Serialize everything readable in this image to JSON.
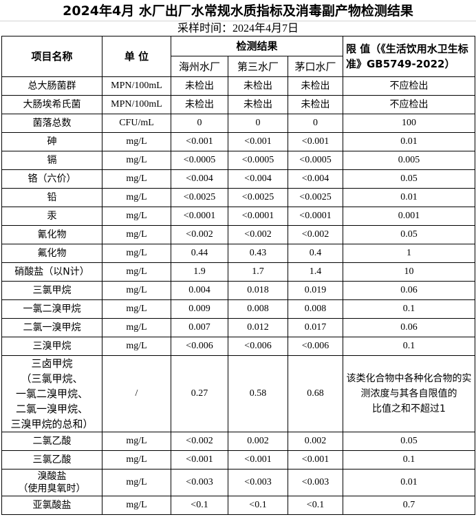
{
  "title": "2024年4月  水厂出厂水常规水质指标及消毒副产物检测结果",
  "subtitle": "采样时间：2024年4月7日",
  "header": {
    "item": "项目名称",
    "unit": "单 位",
    "results": "检测结果",
    "plants": [
      "海州水厂",
      "第三水厂",
      "茅口水厂"
    ],
    "limit": "限 值（《生活饮用水卫生标准》GB5749-2022）"
  },
  "rows": [
    {
      "name": "总大肠菌群",
      "unit": "MPN/100mL",
      "v": [
        "未检出",
        "未检出",
        "未检出"
      ],
      "limit": "不应检出"
    },
    {
      "name": "大肠埃希氏菌",
      "unit": "MPN/100mL",
      "v": [
        "未检出",
        "未检出",
        "未检出"
      ],
      "limit": "不应检出"
    },
    {
      "name": "菌落总数",
      "unit": "CFU/mL",
      "v": [
        "0",
        "0",
        "0"
      ],
      "limit": "100"
    },
    {
      "name": "砷",
      "unit": "mg/L",
      "v": [
        "<0.001",
        "<0.001",
        "<0.001"
      ],
      "limit": "0.01"
    },
    {
      "name": "镉",
      "unit": "mg/L",
      "v": [
        "<0.0005",
        "<0.0005",
        "<0.0005"
      ],
      "limit": "0.005"
    },
    {
      "name": "铬（六价）",
      "unit": "mg/L",
      "v": [
        "<0.004",
        "<0.004",
        "<0.004"
      ],
      "limit": "0.05"
    },
    {
      "name": "铅",
      "unit": "mg/L",
      "v": [
        "<0.0025",
        "<0.0025",
        "<0.0025"
      ],
      "limit": "0.01"
    },
    {
      "name": "汞",
      "unit": "mg/L",
      "v": [
        "<0.0001",
        "<0.0001",
        "<0.0001"
      ],
      "limit": "0.001"
    },
    {
      "name": "氰化物",
      "unit": "mg/L",
      "v": [
        "<0.002",
        "<0.002",
        "<0.002"
      ],
      "limit": "0.05"
    },
    {
      "name": "氟化物",
      "unit": "mg/L",
      "v": [
        "0.44",
        "0.43",
        "0.4"
      ],
      "limit": "1"
    },
    {
      "name": "硝酸盐（以N计）",
      "unit": "mg/L",
      "v": [
        "1.9",
        "1.7",
        "1.4"
      ],
      "limit": "10"
    },
    {
      "name": "三氯甲烷",
      "unit": "mg/L",
      "v": [
        "0.004",
        "0.018",
        "0.019"
      ],
      "limit": "0.06"
    },
    {
      "name": "一氯二溴甲烷",
      "unit": "mg/L",
      "v": [
        "0.009",
        "0.008",
        "0.008"
      ],
      "limit": "0.1"
    },
    {
      "name": "二氯一溴甲烷",
      "unit": "mg/L",
      "v": [
        "0.007",
        "0.012",
        "0.017"
      ],
      "limit": "0.06"
    },
    {
      "name": "三溴甲烷",
      "unit": "mg/L",
      "v": [
        "<0.006",
        "<0.006",
        "<0.006"
      ],
      "limit": "0.1"
    },
    {
      "name": "三卤甲烷\n（三氯甲烷、\n一氯二溴甲烷、\n二氯一溴甲烷、\n三溴甲烷的总和）",
      "unit": "/",
      "v": [
        "0.27",
        "0.58",
        "0.68"
      ],
      "limit": "该类化合物中各种化合物的实测浓度与其各自限值的\n比值之和不超过1",
      "tall": true
    },
    {
      "name": "二氯乙酸",
      "unit": "mg/L",
      "v": [
        "<0.002",
        "0.002",
        "0.002"
      ],
      "limit": "0.05"
    },
    {
      "name": "三氯乙酸",
      "unit": "mg/L",
      "v": [
        "<0.001",
        "<0.001",
        "<0.001"
      ],
      "limit": "0.1"
    },
    {
      "name": "溴酸盐\n（使用臭氧时）",
      "unit": "mg/L",
      "v": [
        "<0.003",
        "<0.003",
        "<0.003"
      ],
      "limit": "0.01",
      "mid": true
    },
    {
      "name": "亚氯酸盐",
      "unit": "mg/L",
      "v": [
        "<0.1",
        "<0.1",
        "<0.1"
      ],
      "limit": "0.7"
    }
  ]
}
